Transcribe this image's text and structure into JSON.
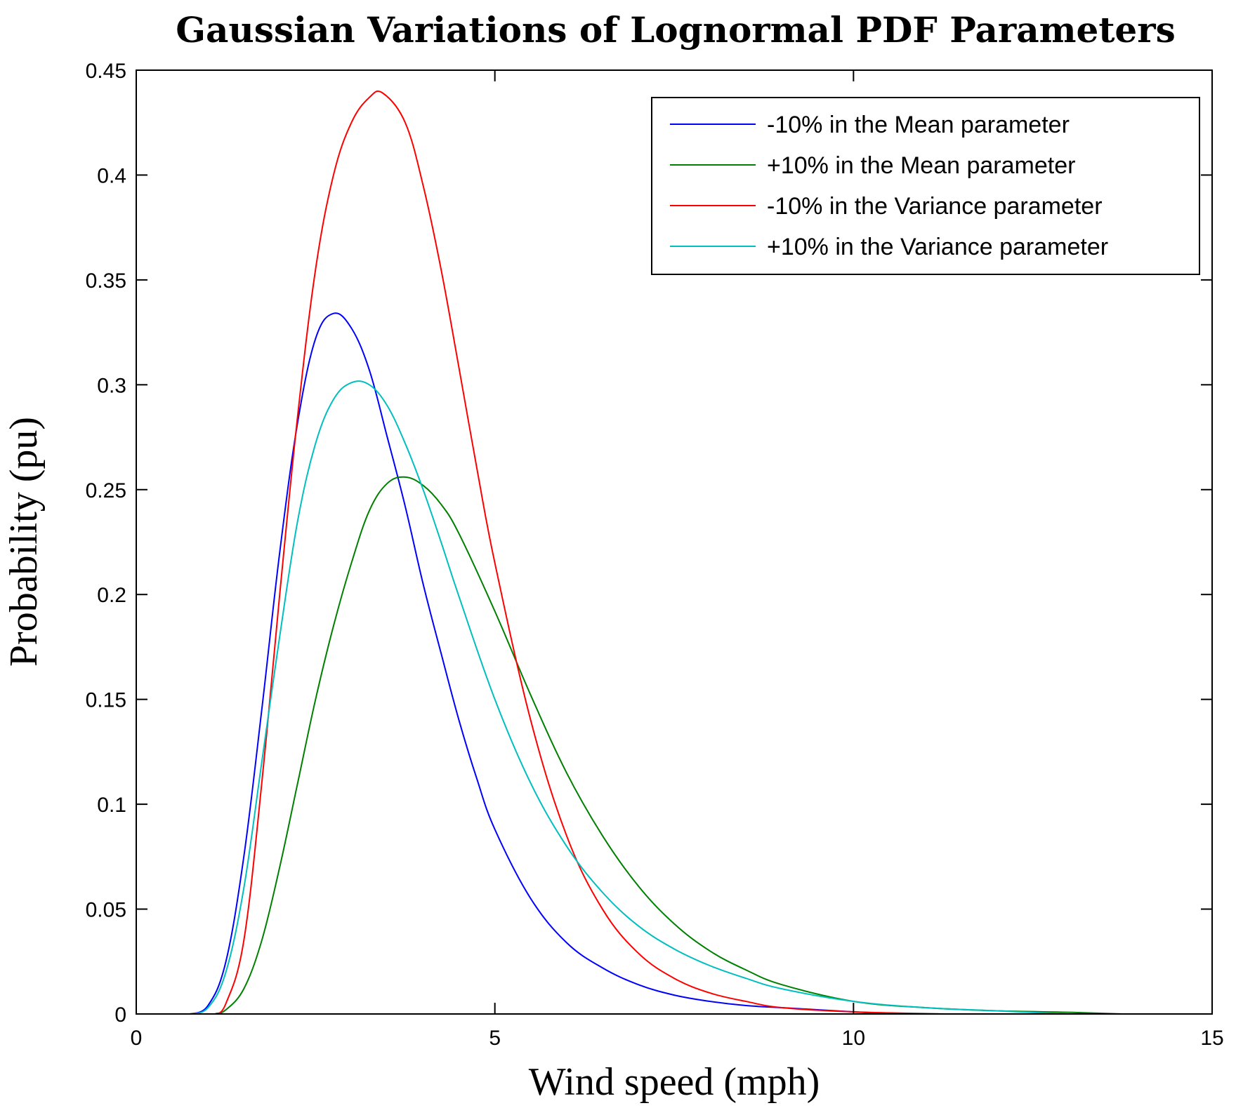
{
  "chart_data": {
    "type": "line",
    "title": "Gaussian Variations of Lognormal PDF Parameters",
    "xlabel": "Wind speed (mph)",
    "ylabel": "Probability (pu)",
    "xlim": [
      0,
      15
    ],
    "ylim": [
      0,
      0.45
    ],
    "xticks": [
      0,
      5,
      10,
      15
    ],
    "xtick_labels": [
      "0",
      "5",
      "10",
      "15"
    ],
    "yticks": [
      0,
      0.05,
      0.1,
      0.15,
      0.2,
      0.25,
      0.3,
      0.35,
      0.4,
      0.45
    ],
    "ytick_labels": [
      "0",
      "0.05",
      "0.1",
      "0.15",
      "0.2",
      "0.25",
      "0.3",
      "0.35",
      "0.4",
      "0.45"
    ],
    "grid": false,
    "legend_position": "top-right",
    "series": [
      {
        "name": "-10% in the Mean parameter",
        "color": "#0000ff",
        "x": [
          0.75,
          1.0,
          1.25,
          1.5,
          1.75,
          2.0,
          2.25,
          2.5,
          2.75,
          3.0,
          3.25,
          3.5,
          3.75,
          4.0,
          4.25,
          4.5,
          4.75,
          5.0,
          5.5,
          6.0,
          6.5,
          7.0,
          7.5,
          8.0,
          8.5,
          9.0,
          9.5,
          10.0,
          10.5
        ],
        "y": [
          0.0,
          0.004,
          0.025,
          0.075,
          0.145,
          0.22,
          0.282,
          0.322,
          0.334,
          0.327,
          0.307,
          0.275,
          0.242,
          0.205,
          0.172,
          0.14,
          0.112,
          0.088,
          0.055,
          0.034,
          0.022,
          0.014,
          0.009,
          0.006,
          0.004,
          0.003,
          0.002,
          0.001,
          0.0
        ]
      },
      {
        "name": "+10% in the Mean parameter",
        "color": "#008000",
        "x": [
          1.1,
          1.25,
          1.5,
          1.75,
          2.0,
          2.25,
          2.5,
          2.75,
          3.0,
          3.25,
          3.5,
          3.75,
          4.0,
          4.25,
          4.5,
          5.0,
          5.5,
          6.0,
          6.5,
          7.0,
          7.5,
          8.0,
          8.5,
          9.0,
          10.0,
          11.0,
          12.0,
          13.0,
          13.75
        ],
        "y": [
          0.0,
          0.002,
          0.012,
          0.035,
          0.07,
          0.11,
          0.15,
          0.185,
          0.215,
          0.24,
          0.253,
          0.256,
          0.252,
          0.243,
          0.229,
          0.192,
          0.152,
          0.115,
          0.085,
          0.061,
          0.043,
          0.03,
          0.021,
          0.014,
          0.006,
          0.003,
          0.0015,
          0.0008,
          0.0
        ]
      },
      {
        "name": "-10% in the Variance parameter",
        "color": "#ff0000",
        "x": [
          1.1,
          1.25,
          1.5,
          1.75,
          2.0,
          2.25,
          2.5,
          2.75,
          3.0,
          3.25,
          3.44,
          3.75,
          4.0,
          4.25,
          4.5,
          4.75,
          5.0,
          5.5,
          6.0,
          6.5,
          7.0,
          7.5,
          8.0,
          8.5,
          9.0,
          10.0,
          11.3
        ],
        "y": [
          0.0,
          0.005,
          0.035,
          0.11,
          0.2,
          0.285,
          0.355,
          0.4,
          0.425,
          0.437,
          0.439,
          0.425,
          0.395,
          0.355,
          0.308,
          0.26,
          0.215,
          0.14,
          0.085,
          0.05,
          0.029,
          0.017,
          0.01,
          0.006,
          0.003,
          0.001,
          0.0
        ]
      },
      {
        "name": "+10% in the Variance parameter",
        "color": "#00bfbf",
        "x": [
          0.75,
          1.0,
          1.25,
          1.5,
          1.75,
          2.0,
          2.25,
          2.5,
          2.75,
          3.0,
          3.25,
          3.5,
          3.75,
          4.0,
          4.25,
          4.5,
          5.0,
          5.5,
          6.0,
          6.5,
          7.0,
          7.5,
          8.0,
          8.5,
          9.0,
          10.0,
          11.0,
          12.0,
          13.0
        ],
        "y": [
          0.0,
          0.003,
          0.02,
          0.06,
          0.12,
          0.18,
          0.235,
          0.272,
          0.293,
          0.301,
          0.3,
          0.29,
          0.272,
          0.25,
          0.225,
          0.199,
          0.15,
          0.11,
          0.08,
          0.058,
          0.042,
          0.031,
          0.023,
          0.017,
          0.012,
          0.006,
          0.003,
          0.0015,
          0.0
        ]
      }
    ]
  }
}
